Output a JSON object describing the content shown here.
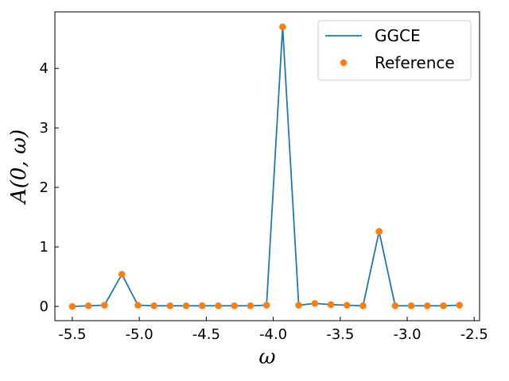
{
  "chart_data": {
    "type": "line",
    "xlabel": "ω",
    "ylabel": "A(0, ω)",
    "xlim": [
      -5.63,
      -2.46
    ],
    "ylim": [
      -0.24,
      4.95
    ],
    "xticks": [
      "-5.5",
      "-5.0",
      "-4.5",
      "-4.0",
      "-3.5",
      "-3.0",
      "-2.5"
    ],
    "xtick_values": [
      -5.5,
      -5.0,
      -4.5,
      -4.0,
      -3.5,
      -3.0,
      -2.5
    ],
    "yticks": [
      "0",
      "1",
      "2",
      "3",
      "4"
    ],
    "ytick_values": [
      0,
      1,
      2,
      3,
      4
    ],
    "grid": false,
    "legend_position": "top-right",
    "series": [
      {
        "name": "GGCE",
        "kind": "line",
        "color": "#1f77b4",
        "x": [
          -5.5,
          -5.38,
          -5.26,
          -5.13,
          -5.01,
          -4.89,
          -4.77,
          -4.65,
          -4.53,
          -4.41,
          -4.29,
          -4.17,
          -4.05,
          -3.93,
          -3.81,
          -3.69,
          -3.57,
          -3.45,
          -3.33,
          -3.21,
          -3.09,
          -2.97,
          -2.85,
          -2.73,
          -2.61
        ],
        "y": [
          0.0,
          0.01,
          0.02,
          0.54,
          0.02,
          0.01,
          0.01,
          0.01,
          0.01,
          0.01,
          0.01,
          0.01,
          0.02,
          4.7,
          0.02,
          0.05,
          0.03,
          0.02,
          0.01,
          1.26,
          0.01,
          0.01,
          0.01,
          0.01,
          0.02
        ]
      },
      {
        "name": "Reference",
        "kind": "scatter",
        "color": "#ff7f0e",
        "x": [
          -5.5,
          -5.38,
          -5.26,
          -5.13,
          -5.01,
          -4.89,
          -4.77,
          -4.65,
          -4.53,
          -4.41,
          -4.29,
          -4.17,
          -4.05,
          -3.93,
          -3.81,
          -3.69,
          -3.57,
          -3.45,
          -3.33,
          -3.21,
          -3.09,
          -2.97,
          -2.85,
          -2.73,
          -2.61
        ],
        "y": [
          0.0,
          0.01,
          0.02,
          0.54,
          0.02,
          0.01,
          0.01,
          0.01,
          0.01,
          0.01,
          0.01,
          0.01,
          0.02,
          4.7,
          0.02,
          0.05,
          0.03,
          0.02,
          0.01,
          1.26,
          0.01,
          0.01,
          0.01,
          0.01,
          0.02
        ]
      }
    ]
  }
}
